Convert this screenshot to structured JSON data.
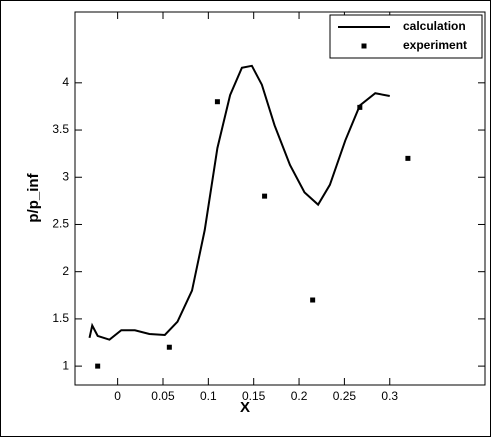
{
  "chart_data": {
    "type": "line",
    "x_label": "X",
    "y_label": "p/p_inf",
    "xlim": [
      -0.047,
      0.405
    ],
    "ylim": [
      0.8,
      4.75
    ],
    "xticks": [
      0,
      0.05,
      0.1,
      0.15,
      0.2,
      0.25,
      0.3
    ],
    "yticks": [
      1,
      1.5,
      2,
      2.5,
      3,
      3.5,
      4
    ],
    "grid": false,
    "legend": "top-right",
    "series": [
      {
        "name": "calculation",
        "kind": "line",
        "color": "#000000",
        "x": [
          -0.031,
          -0.028,
          -0.022,
          -0.009,
          0.004,
          0.019,
          0.035,
          0.052,
          0.066,
          0.082,
          0.096,
          0.11,
          0.124,
          0.137,
          0.148,
          0.159,
          0.173,
          0.19,
          0.206,
          0.221,
          0.234,
          0.251,
          0.267,
          0.284,
          0.3
        ],
        "values": [
          1.3,
          1.43,
          1.32,
          1.28,
          1.38,
          1.38,
          1.34,
          1.33,
          1.47,
          1.8,
          2.44,
          3.31,
          3.87,
          4.16,
          4.18,
          3.98,
          3.55,
          3.13,
          2.84,
          2.71,
          2.92,
          3.39,
          3.76,
          3.89,
          3.86
        ]
      },
      {
        "name": "experiment",
        "kind": "scatter",
        "color": "#000000",
        "x": [
          -0.022,
          0.057,
          0.11,
          0.162,
          0.215,
          0.267,
          0.32
        ],
        "values": [
          1.0,
          1.2,
          3.8,
          2.8,
          1.7,
          3.74,
          3.2
        ]
      }
    ]
  }
}
